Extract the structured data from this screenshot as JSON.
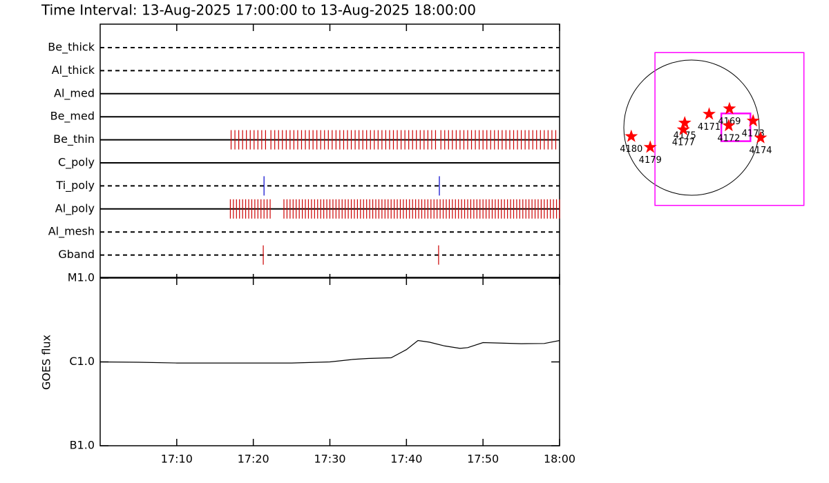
{
  "chart_data": [
    {
      "type": "timeline",
      "title": "Time Interval: 13-Aug-2025 17:00:00 to 13-Aug-2025 18:00:00",
      "rows": [
        {
          "label": "Be_thick",
          "line": "dashed"
        },
        {
          "label": "Al_thick",
          "line": "dashed"
        },
        {
          "label": "Al_med",
          "line": "solid"
        },
        {
          "label": "Be_med",
          "line": "solid"
        },
        {
          "label": "Be_thin",
          "line": "solid",
          "color": "#cc0000",
          "events": [
            17.1,
            17.6,
            18.1,
            18.6,
            19.1,
            19.6,
            20.1,
            20.6,
            21.1,
            21.6,
            22.3,
            22.8,
            23.3,
            23.8,
            24.3,
            24.8,
            25.3,
            25.8,
            26.3,
            26.8,
            27.3,
            27.8,
            28.3,
            28.8,
            29.3,
            29.8,
            30.3,
            30.8,
            31.3,
            31.8,
            32.3,
            32.8,
            33.3,
            33.8,
            34.3,
            34.8,
            35.3,
            35.8,
            36.3,
            36.8,
            37.3,
            37.8,
            38.3,
            38.8,
            39.3,
            39.8,
            40.3,
            40.8,
            41.3,
            41.8,
            42.3,
            42.8,
            43.3,
            43.8,
            44.5,
            45.0,
            45.5,
            46.0,
            46.5,
            47.0,
            47.5,
            48.0,
            48.5,
            49.0,
            49.5,
            50.0,
            50.5,
            51.0,
            51.5,
            52.0,
            52.5,
            53.0,
            53.5,
            54.0,
            54.5,
            55.0,
            55.5,
            56.0,
            56.5,
            57.0,
            57.5,
            58.0,
            58.5,
            59.0,
            59.5
          ]
        },
        {
          "label": "C_poly",
          "line": "solid"
        },
        {
          "label": "Ti_poly",
          "line": "dashed",
          "color": "#0000cc",
          "events": [
            21.4,
            44.3
          ]
        },
        {
          "label": "Al_poly",
          "line": "solid",
          "color": "#cc0000",
          "events": [
            17.0,
            17.4,
            17.8,
            18.2,
            18.6,
            19.0,
            19.4,
            19.8,
            20.2,
            20.6,
            21.0,
            21.4,
            21.8,
            22.2,
            24.0,
            24.4,
            24.8,
            25.2,
            25.6,
            26.0,
            26.4,
            26.8,
            27.2,
            27.6,
            28.0,
            28.4,
            28.8,
            29.2,
            29.6,
            30.0,
            30.4,
            30.8,
            31.2,
            31.6,
            32.0,
            32.4,
            32.8,
            33.2,
            33.6,
            34.0,
            34.4,
            34.8,
            35.2,
            35.6,
            36.0,
            36.4,
            36.8,
            37.2,
            37.6,
            38.0,
            38.4,
            38.8,
            39.2,
            39.6,
            40.0,
            40.4,
            40.8,
            41.2,
            41.6,
            42.0,
            42.4,
            42.8,
            43.2,
            43.6,
            44.0,
            44.4,
            44.8,
            45.2,
            45.6,
            46.0,
            46.4,
            46.8,
            47.2,
            47.6,
            48.0,
            48.4,
            48.8,
            49.2,
            49.6,
            50.0,
            50.4,
            50.8,
            51.2,
            51.6,
            52.0,
            52.4,
            52.8,
            53.2,
            53.6,
            54.0,
            54.4,
            54.8,
            55.2,
            55.6,
            56.0,
            56.4,
            56.8,
            57.2,
            57.6,
            58.0,
            58.4,
            58.8,
            59.2,
            59.6,
            60.0
          ]
        },
        {
          "label": "Al_mesh",
          "line": "dashed"
        },
        {
          "label": "Gband",
          "line": "dashed",
          "color": "#cc0000",
          "events": [
            21.3,
            44.2
          ]
        }
      ]
    },
    {
      "type": "line",
      "ylabel": "GOES flux",
      "color": "#000000",
      "log": true,
      "x": [
        0,
        5,
        10,
        15,
        20,
        25,
        30,
        33,
        35,
        38,
        40,
        41.5,
        43,
        45,
        47,
        48,
        50,
        52,
        55,
        58,
        60
      ],
      "values": [
        1e-06,
        9.9e-07,
        9.7e-07,
        9.7e-07,
        9.7e-07,
        9.7e-07,
        1e-06,
        1.07e-06,
        1.1e-06,
        1.12e-06,
        1.4e-06,
        1.8e-06,
        1.72e-06,
        1.55e-06,
        1.45e-06,
        1.48e-06,
        1.7e-06,
        1.68e-06,
        1.65e-06,
        1.66e-06,
        1.8e-06
      ],
      "xlim": [
        0,
        60
      ],
      "xticks": [
        {
          "value": 10,
          "label": "17:10"
        },
        {
          "value": 20,
          "label": "17:20"
        },
        {
          "value": 30,
          "label": "17:30"
        },
        {
          "value": 40,
          "label": "17:40"
        },
        {
          "value": 50,
          "label": "17:50"
        },
        {
          "value": 60,
          "label": "18:00"
        }
      ],
      "ylim": [
        1e-07,
        1e-05
      ],
      "yticks": [
        {
          "value": 1e-05,
          "label": "M1.0"
        },
        {
          "value": 1e-06,
          "label": "C1.0"
        },
        {
          "value": 1e-07,
          "label": "B1.0"
        }
      ]
    },
    {
      "type": "map",
      "star_color": "#ff0000",
      "regions": [
        {
          "label": "4180",
          "x": -0.89,
          "y": -0.13
        },
        {
          "label": "4179",
          "x": -0.61,
          "y": -0.29
        },
        {
          "label": "4175",
          "x": -0.1,
          "y": 0.07
        },
        {
          "label": "4177",
          "x": -0.12,
          "y": -0.03
        },
        {
          "label": "4171",
          "x": 0.26,
          "y": 0.2
        },
        {
          "label": "4169",
          "x": 0.56,
          "y": 0.28
        },
        {
          "label": "4172",
          "x": 0.55,
          "y": 0.03
        },
        {
          "label": "4173",
          "x": 0.91,
          "y": 0.1
        },
        {
          "label": "4174",
          "x": 1.02,
          "y": -0.15
        }
      ],
      "fov": [
        {
          "x": [
            -0.54,
            1.66
          ],
          "y": [
            -1.15,
            1.11
          ],
          "color": "#ff00ff"
        },
        {
          "x": [
            0.44,
            0.87
          ],
          "y": [
            -0.2,
            0.21
          ],
          "color": "#ff00ff"
        }
      ]
    }
  ]
}
